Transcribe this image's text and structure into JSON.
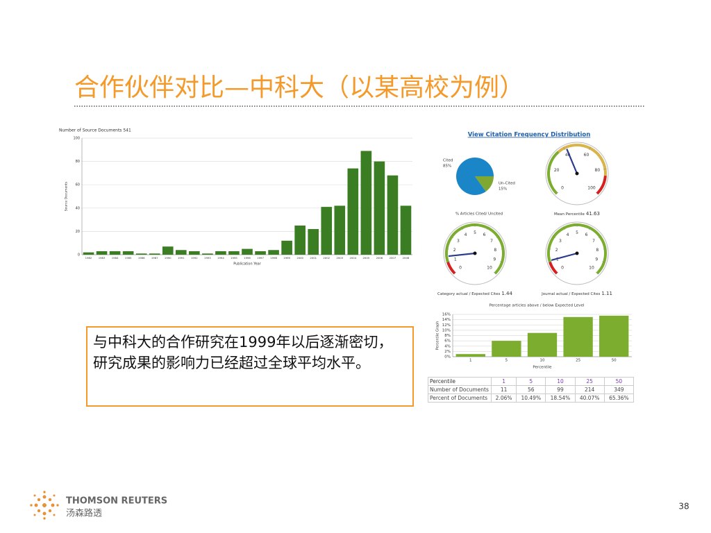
{
  "title": "合作伙伴对比—中科大（以某高校为例）",
  "link": "View Citation Frequency Distribution",
  "chart_data": [
    {
      "type": "bar",
      "title": "Number of Source Documents 541",
      "xlabel": "Publication Year",
      "ylabel": "Source Documents",
      "categories": [
        "1982",
        "1983",
        "1984",
        "1985",
        "1986",
        "1987",
        "1990",
        "1991",
        "1992",
        "1993",
        "1994",
        "1995",
        "1996",
        "1997",
        "1998",
        "1999",
        "2000",
        "2001",
        "2002",
        "2003",
        "2004",
        "2005",
        "2006",
        "2007",
        "2008"
      ],
      "values": [
        2,
        3,
        3,
        3,
        1,
        1,
        7,
        4,
        3,
        1,
        3,
        3,
        5,
        3,
        4,
        12,
        25,
        22,
        41,
        42,
        74,
        89,
        80,
        68,
        42
      ],
      "color": "#3a7d22",
      "ylim": [
        0,
        100
      ],
      "yticks": [
        0,
        20,
        40,
        60,
        80,
        100
      ],
      "grid": true
    },
    {
      "type": "pie",
      "title": "% Articles Cited/ Uncited",
      "categories": [
        "Cited",
        "Un-Cited"
      ],
      "values": [
        85,
        15
      ],
      "value_labels": [
        "85%",
        "15%"
      ],
      "colors": [
        "#1a86c8",
        "#7ea832"
      ]
    },
    {
      "type": "gauge",
      "title": "Mean Percentile",
      "value": 41.63,
      "ylim": [
        0,
        100
      ],
      "yticks": [
        0,
        20,
        40,
        60,
        80,
        100
      ]
    },
    {
      "type": "gauge",
      "title": "Category actual / Expected Cites",
      "value": 1.44,
      "ylim": [
        0,
        10
      ],
      "yticks": [
        0,
        1,
        2,
        3,
        4,
        5,
        6,
        7,
        8,
        9,
        10
      ]
    },
    {
      "type": "gauge",
      "title": "Journal actual / Expected Cites",
      "value": 1.11,
      "ylim": [
        0,
        10
      ],
      "yticks": [
        0,
        1,
        2,
        3,
        4,
        5,
        6,
        7,
        8,
        9,
        10
      ]
    },
    {
      "type": "bar",
      "title": "Percentage articles above / below Expected Level",
      "xlabel": "Percentile",
      "ylabel": "Percentile Graph",
      "categories": [
        "1",
        "5",
        "10",
        "25",
        "50"
      ],
      "values": [
        1,
        6,
        9,
        15,
        15.5
      ],
      "color": "#7cad2e",
      "ylim": [
        0,
        16
      ],
      "yticks": [
        {
          "value": 0,
          "label": "0%"
        },
        {
          "value": 2,
          "label": "2%"
        },
        {
          "value": 4,
          "label": "4%"
        },
        {
          "value": 6,
          "label": "6%"
        },
        {
          "value": 8,
          "label": "8%"
        },
        {
          "value": 10,
          "label": "10%"
        },
        {
          "value": 12,
          "label": "12%"
        },
        {
          "value": 14,
          "label": "14%"
        },
        {
          "value": 16,
          "label": "16%"
        }
      ],
      "grid": true
    }
  ],
  "table": {
    "rows": [
      [
        "Percentile",
        1,
        5,
        10,
        25,
        50
      ],
      [
        "Number of Documents",
        11,
        56,
        99,
        214,
        349
      ],
      [
        "Percent of Documents",
        "2.06%",
        "10.49%",
        "18.54%",
        "40.07%",
        "65.36%"
      ]
    ]
  },
  "note": "与中科大的合作研究在1999年以后逐渐密切，研究成果的影响力已经超过全球平均水平。",
  "footer": {
    "brand": "THOMSON REUTERS",
    "brand_cn": "汤森路透",
    "page": 38
  }
}
